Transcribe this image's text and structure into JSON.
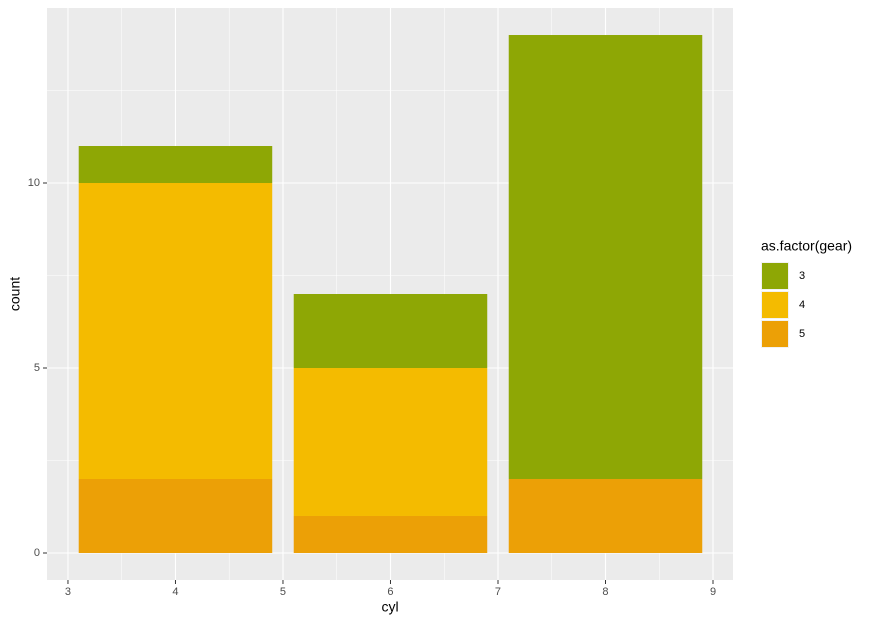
{
  "chart_data": {
    "type": "stacked_bar",
    "x_label": "cyl",
    "y_label": "count",
    "x": [
      4,
      6,
      8
    ],
    "series": [
      {
        "name": "3",
        "color": "#8ea705",
        "values": [
          1,
          2,
          12
        ]
      },
      {
        "name": "4",
        "color": "#f4bb00",
        "values": [
          8,
          4,
          0
        ]
      },
      {
        "name": "5",
        "color": "#eca006",
        "values": [
          2,
          1,
          2
        ]
      }
    ],
    "legend_title": "as.factor(gear)",
    "xlim": [
      2.805,
      9.186
    ],
    "xticks": [
      3,
      4,
      5,
      6,
      7,
      8,
      9
    ],
    "ylim": [
      -0.73,
      14.73
    ],
    "yticks": [
      0,
      5,
      10
    ],
    "grid": true,
    "legend": "right"
  }
}
